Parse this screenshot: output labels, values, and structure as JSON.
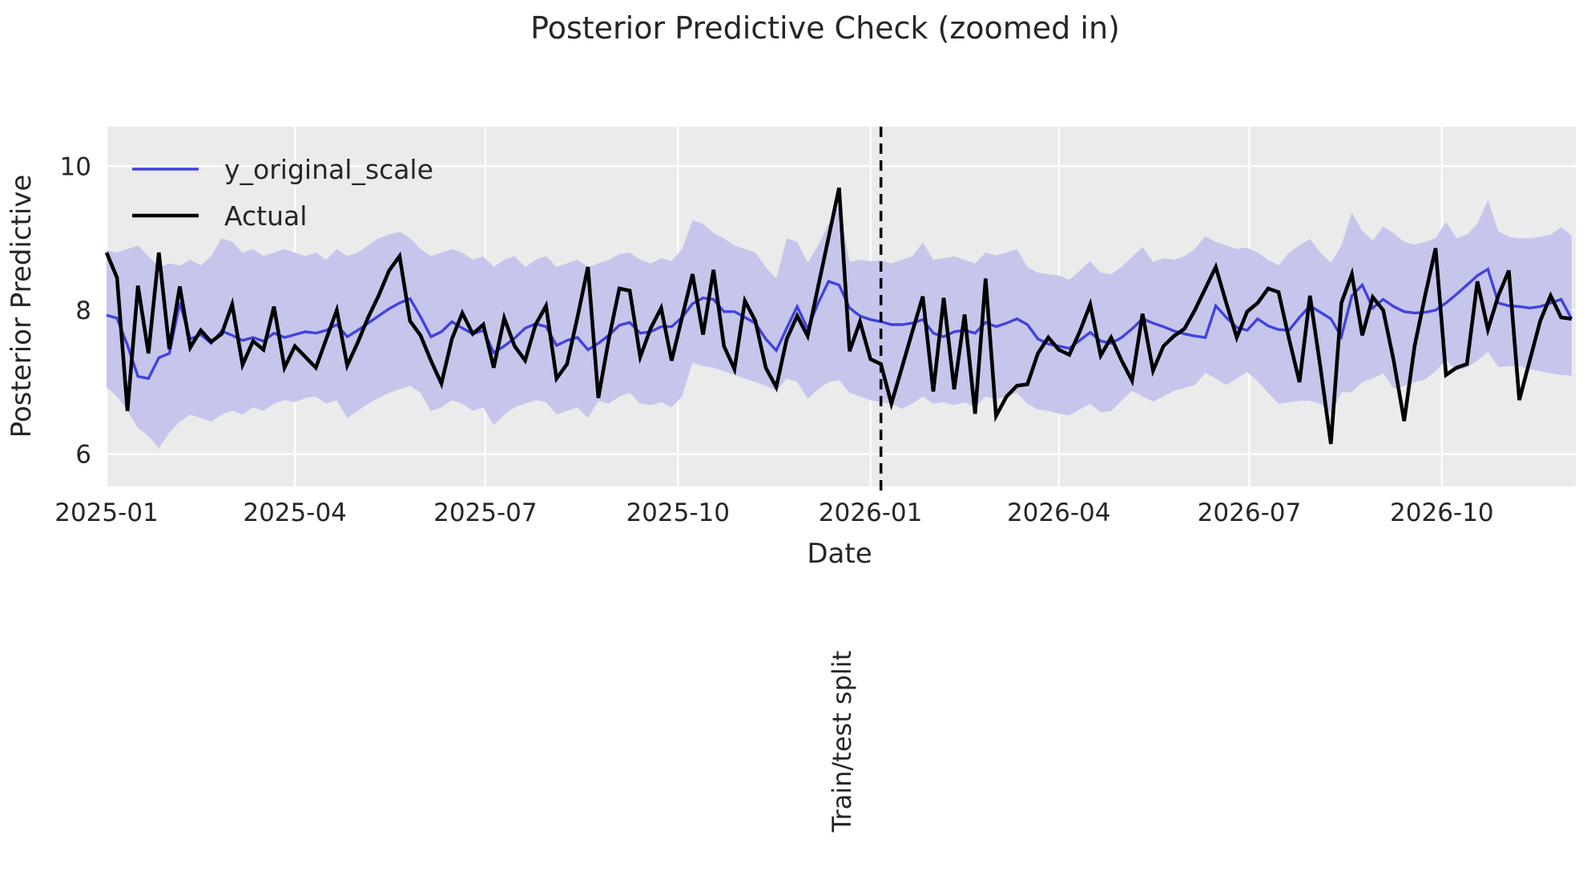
{
  "figure": {
    "title": "Posterior Predictive Check (zoomed in)",
    "xlabel": "Date",
    "ylabel": "Posterior Predictive",
    "background": "#ffffff",
    "plot_background": "#ebebeb",
    "grid_color": "#ffffff",
    "text_color": "#262626"
  },
  "legend": {
    "entries": [
      {
        "label": "y_original_scale",
        "color": "#4242df"
      },
      {
        "label": "Actual",
        "color": "#000000"
      }
    ]
  },
  "split_line": {
    "label": "Train/test split",
    "date": "2026-01-05",
    "day": 370,
    "style": "dashed",
    "color": "#000000"
  },
  "chart_data": {
    "type": "line",
    "title": "Posterior Predictive Check (zoomed in)",
    "xlabel": "Date",
    "ylabel": "Posterior Predictive",
    "x_start_date": "2025-01-01",
    "x_step_days": 5,
    "n_points": 141,
    "xlim_days": [
      0,
      702
    ],
    "ylim": [
      5.55,
      10.55
    ],
    "y_ticks": [
      6,
      8,
      10
    ],
    "x_ticks": [
      {
        "day": 0,
        "label": "2025-01"
      },
      {
        "day": 90,
        "label": "2025-04"
      },
      {
        "day": 181,
        "label": "2025-07"
      },
      {
        "day": 273,
        "label": "2025-10"
      },
      {
        "day": 365,
        "label": "2026-01"
      },
      {
        "day": 455,
        "label": "2026-04"
      },
      {
        "day": 546,
        "label": "2026-07"
      },
      {
        "day": 638,
        "label": "2026-10"
      }
    ],
    "grid": true,
    "legend_position": "upper left",
    "series": [
      {
        "name": "y_original_scale",
        "color": "#4242df",
        "width": 3.4,
        "values": [
          7.93,
          7.89,
          7.51,
          7.08,
          7.05,
          7.34,
          7.4,
          8.1,
          7.6,
          7.66,
          7.54,
          7.71,
          7.65,
          7.58,
          7.62,
          7.57,
          7.68,
          7.62,
          7.66,
          7.7,
          7.68,
          7.72,
          7.8,
          7.63,
          7.72,
          7.82,
          7.92,
          8.02,
          8.1,
          8.16,
          7.91,
          7.63,
          7.7,
          7.84,
          7.75,
          7.67,
          7.72,
          7.41,
          7.5,
          7.61,
          7.75,
          7.81,
          7.77,
          7.51,
          7.58,
          7.62,
          7.45,
          7.54,
          7.65,
          7.79,
          7.83,
          7.68,
          7.7,
          7.77,
          7.77,
          7.9,
          8.09,
          8.17,
          8.15,
          7.98,
          7.98,
          7.9,
          7.82,
          7.6,
          7.44,
          7.75,
          8.05,
          7.74,
          8.1,
          8.4,
          8.35,
          8.03,
          7.92,
          7.87,
          7.84,
          7.8,
          7.8,
          7.82,
          7.87,
          7.68,
          7.63,
          7.7,
          7.72,
          7.68,
          7.83,
          7.77,
          7.82,
          7.88,
          7.8,
          7.6,
          7.53,
          7.5,
          7.47,
          7.58,
          7.69,
          7.57,
          7.54,
          7.62,
          7.74,
          7.88,
          7.82,
          7.77,
          7.71,
          7.67,
          7.64,
          7.62,
          8.06,
          7.9,
          7.76,
          7.72,
          7.88,
          7.78,
          7.73,
          7.72,
          7.9,
          8.06,
          7.97,
          7.88,
          7.63,
          8.2,
          8.35,
          8.03,
          8.15,
          8.05,
          7.98,
          7.96,
          7.97,
          8.0,
          8.1,
          8.22,
          8.35,
          8.48,
          8.57,
          8.1,
          8.06,
          8.05,
          8.03,
          8.05,
          8.1,
          8.15,
          7.88
        ]
      },
      {
        "name": "Actual",
        "color": "#000000",
        "width": 4.6,
        "values": [
          8.8,
          8.45,
          6.6,
          8.34,
          7.4,
          8.8,
          7.46,
          8.33,
          7.48,
          7.72,
          7.56,
          7.67,
          8.08,
          7.24,
          7.57,
          7.45,
          8.05,
          7.2,
          7.5,
          7.35,
          7.2,
          7.6,
          8.0,
          7.23,
          7.55,
          7.9,
          8.2,
          8.55,
          8.75,
          7.85,
          7.65,
          7.3,
          6.98,
          7.6,
          7.96,
          7.67,
          7.8,
          7.2,
          7.89,
          7.5,
          7.3,
          7.8,
          8.06,
          7.05,
          7.25,
          7.9,
          8.6,
          6.78,
          7.6,
          8.3,
          8.27,
          7.35,
          7.75,
          8.03,
          7.3,
          7.9,
          8.5,
          7.66,
          8.56,
          7.5,
          7.18,
          8.13,
          7.85,
          7.2,
          6.93,
          7.6,
          7.92,
          7.64,
          8.33,
          9.01,
          9.7,
          7.43,
          7.84,
          7.32,
          7.25,
          6.7,
          7.2,
          7.7,
          8.19,
          6.87,
          8.17,
          6.9,
          7.94,
          6.56,
          8.44,
          6.53,
          6.8,
          6.95,
          6.97,
          7.4,
          7.62,
          7.45,
          7.38,
          7.7,
          8.08,
          7.37,
          7.62,
          7.3,
          7.02,
          7.95,
          7.16,
          7.5,
          7.64,
          7.74,
          8.0,
          8.3,
          8.6,
          8.1,
          7.62,
          7.98,
          8.1,
          8.3,
          8.25,
          7.6,
          7.0,
          8.2,
          7.2,
          6.14,
          8.1,
          8.5,
          7.65,
          8.18,
          8.0,
          7.3,
          6.46,
          7.5,
          8.2,
          8.86,
          7.1,
          7.2,
          7.25,
          8.4,
          7.73,
          8.2,
          8.55,
          6.75,
          7.3,
          7.85,
          8.2,
          7.9,
          7.88
        ]
      }
    ],
    "band": {
      "name": "posterior-predictive-interval",
      "color": "#c6c6ec",
      "upper": [
        8.83,
        8.8,
        8.85,
        8.9,
        8.75,
        8.6,
        8.65,
        8.62,
        8.7,
        8.62,
        8.75,
        9.0,
        8.95,
        8.8,
        8.85,
        8.75,
        8.8,
        8.85,
        8.8,
        8.75,
        8.8,
        8.7,
        8.85,
        8.75,
        8.8,
        8.9,
        9.0,
        9.05,
        9.09,
        9.0,
        8.85,
        8.75,
        8.8,
        8.85,
        8.8,
        8.7,
        8.75,
        8.6,
        8.7,
        8.75,
        8.6,
        8.7,
        8.75,
        8.6,
        8.65,
        8.7,
        8.6,
        8.65,
        8.7,
        8.78,
        8.8,
        8.7,
        8.65,
        8.72,
        8.68,
        8.85,
        9.25,
        9.2,
        9.07,
        9.0,
        8.9,
        8.85,
        8.8,
        8.6,
        8.44,
        9.0,
        8.95,
        8.66,
        8.9,
        9.2,
        9.46,
        8.67,
        8.7,
        8.68,
        8.69,
        8.65,
        8.7,
        8.75,
        8.94,
        8.7,
        8.72,
        8.75,
        8.7,
        8.65,
        8.8,
        8.76,
        8.8,
        8.85,
        8.6,
        8.52,
        8.5,
        8.48,
        8.42,
        8.55,
        8.68,
        8.52,
        8.5,
        8.6,
        8.74,
        8.88,
        8.67,
        8.72,
        8.7,
        8.75,
        8.85,
        9.03,
        8.95,
        8.9,
        8.85,
        8.87,
        8.8,
        8.7,
        8.62,
        8.8,
        8.9,
        8.99,
        8.8,
        8.66,
        8.9,
        9.36,
        9.1,
        8.97,
        9.16,
        9.07,
        8.95,
        8.91,
        8.95,
        9.0,
        9.23,
        9.0,
        9.05,
        9.2,
        9.53,
        9.1,
        9.02,
        9.0,
        9.0,
        9.02,
        9.05,
        9.15,
        9.04
      ],
      "lower": [
        6.93,
        6.8,
        6.6,
        6.36,
        6.25,
        6.08,
        6.3,
        6.45,
        6.55,
        6.5,
        6.45,
        6.55,
        6.6,
        6.55,
        6.65,
        6.6,
        6.7,
        6.75,
        6.72,
        6.78,
        6.8,
        6.7,
        6.75,
        6.5,
        6.6,
        6.7,
        6.78,
        6.85,
        6.9,
        6.95,
        6.85,
        6.6,
        6.65,
        6.75,
        6.7,
        6.6,
        6.65,
        6.4,
        6.55,
        6.65,
        6.7,
        6.75,
        6.72,
        6.55,
        6.6,
        6.65,
        6.5,
        6.74,
        6.7,
        6.8,
        6.85,
        6.7,
        6.68,
        6.72,
        6.65,
        6.8,
        7.27,
        7.22,
        7.2,
        7.15,
        7.1,
        7.05,
        7.0,
        6.95,
        6.88,
        7.05,
        7.0,
        6.77,
        6.9,
        7.0,
        7.03,
        6.85,
        6.8,
        6.75,
        6.72,
        6.7,
        6.63,
        6.7,
        6.8,
        6.7,
        6.72,
        6.68,
        6.72,
        6.65,
        6.8,
        6.76,
        6.8,
        6.85,
        6.7,
        6.62,
        6.6,
        6.56,
        6.54,
        6.62,
        6.7,
        6.58,
        6.6,
        6.74,
        6.88,
        6.8,
        6.73,
        6.8,
        6.88,
        6.92,
        6.96,
        7.13,
        7.05,
        6.96,
        7.05,
        7.14,
        7.01,
        6.85,
        6.7,
        6.72,
        6.74,
        6.74,
        6.7,
        6.56,
        6.86,
        6.86,
        7.0,
        7.05,
        7.12,
        6.91,
        6.95,
        7.0,
        7.04,
        7.15,
        7.31,
        7.16,
        7.2,
        7.3,
        7.42,
        7.21,
        7.22,
        7.22,
        7.18,
        7.15,
        7.12,
        7.1,
        7.09
      ]
    }
  }
}
